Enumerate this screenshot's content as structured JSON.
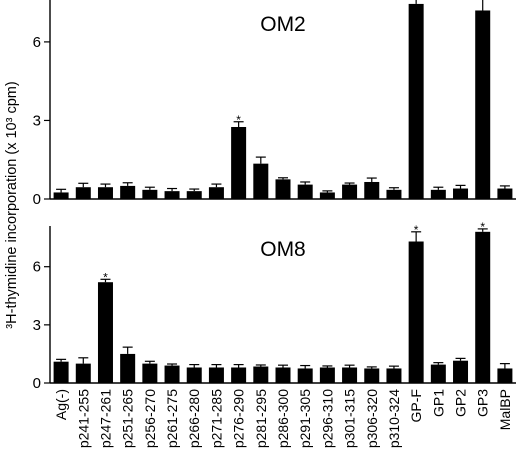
{
  "chart_data": {
    "type": "bar",
    "ylabel": "³H-thymidine incorporation (x 10³ cpm)",
    "categories": [
      "Ag(-)",
      "p241-255",
      "p247-261",
      "p251-265",
      "p256-270",
      "p261-275",
      "p266-280",
      "p271-285",
      "p276-290",
      "p281-295",
      "p286-300",
      "p291-305",
      "p296-310",
      "p301-315",
      "p306-320",
      "p310-324",
      "GP-F",
      "GP1",
      "GP2",
      "GP3",
      "MalBP"
    ],
    "yticks": [
      0,
      3,
      6
    ],
    "significance_marker": "*",
    "panels": [
      {
        "title": "OM2",
        "ylim": [
          0,
          7.6
        ],
        "values": [
          0.25,
          0.45,
          0.45,
          0.5,
          0.35,
          0.3,
          0.3,
          0.45,
          2.75,
          1.35,
          0.75,
          0.55,
          0.25,
          0.55,
          0.65,
          0.35,
          7.45,
          0.35,
          0.4,
          7.2,
          0.4
        ],
        "errors": [
          0.12,
          0.15,
          0.12,
          0.12,
          0.1,
          0.1,
          0.08,
          0.12,
          0.2,
          0.25,
          0.06,
          0.1,
          0.06,
          0.06,
          0.15,
          0.08,
          0.45,
          0.1,
          0.12,
          0.6,
          0.1
        ],
        "significant": [
          8,
          16,
          19
        ]
      },
      {
        "title": "OM8",
        "ylim": [
          0,
          8.1
        ],
        "values": [
          1.1,
          1.0,
          5.2,
          1.5,
          1.0,
          0.9,
          0.8,
          0.8,
          0.8,
          0.85,
          0.8,
          0.75,
          0.8,
          0.8,
          0.75,
          0.75,
          7.3,
          0.95,
          1.15,
          7.8,
          0.75
        ],
        "errors": [
          0.12,
          0.3,
          0.15,
          0.35,
          0.12,
          0.08,
          0.15,
          0.15,
          0.15,
          0.08,
          0.12,
          0.15,
          0.08,
          0.12,
          0.08,
          0.12,
          0.5,
          0.1,
          0.12,
          0.15,
          0.25
        ],
        "significant": [
          2,
          16,
          19
        ]
      }
    ]
  }
}
